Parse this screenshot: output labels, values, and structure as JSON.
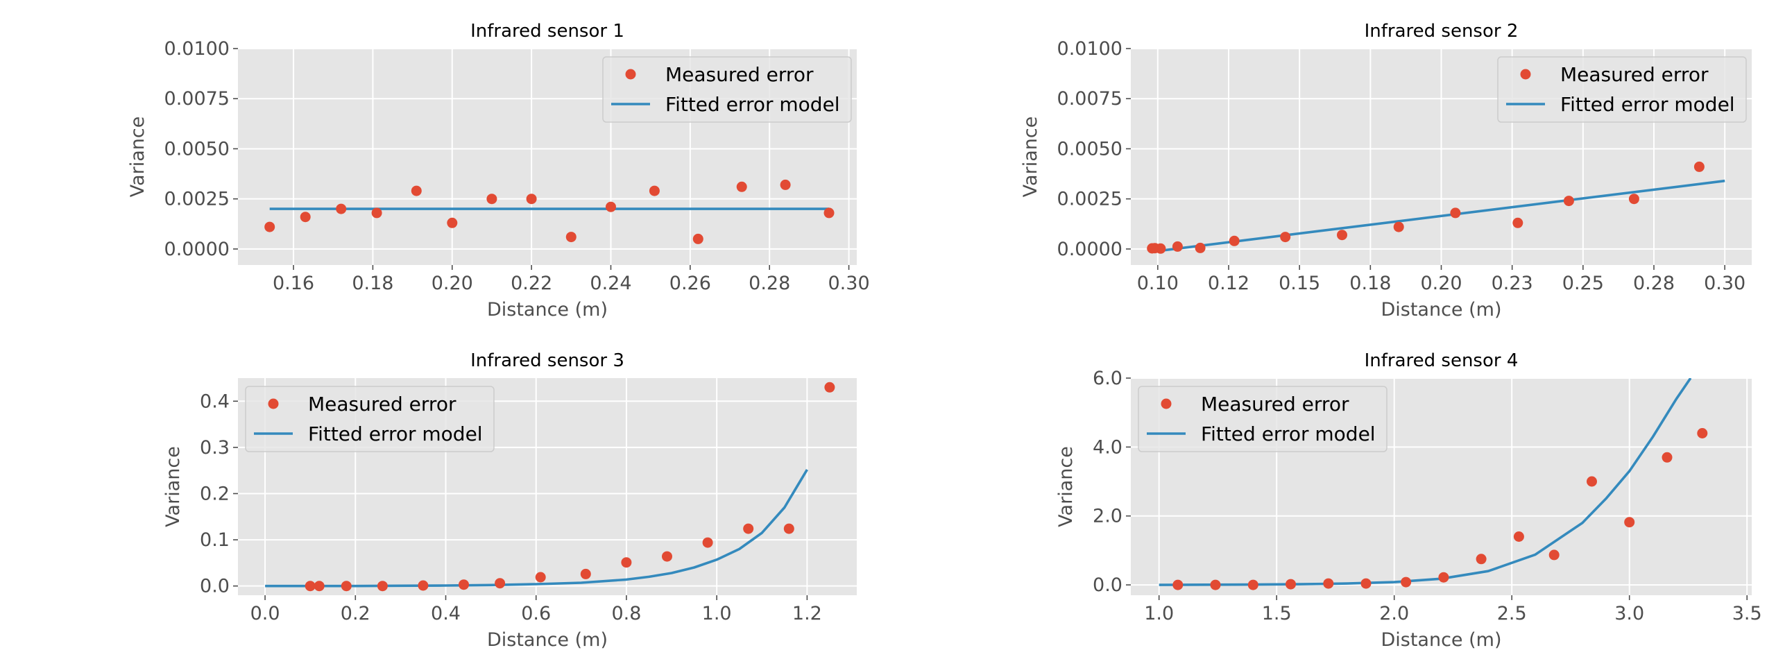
{
  "colors": {
    "plot_background": "#e5e5e5",
    "grid": "#ffffff",
    "measured": "#e24a33",
    "fitted": "#348abd",
    "tick_text": "#4d4d4d",
    "tick_mark": "#4d4d4d"
  },
  "legend": {
    "measured": "Measured error",
    "fitted": "Fitted error model"
  },
  "chart_data": [
    {
      "type": "scatter",
      "title": "Infrared sensor 1",
      "xlabel": "Distance (m)",
      "ylabel": "Variance",
      "xlim": [
        0.146,
        0.302
      ],
      "ylim": [
        -0.0008,
        0.01
      ],
      "xticks": [
        0.16,
        0.18,
        0.2,
        0.22,
        0.24,
        0.26,
        0.28,
        0.3
      ],
      "xtick_labels": [
        "0.16",
        "0.18",
        "0.20",
        "0.22",
        "0.24",
        "0.26",
        "0.28",
        "0.30"
      ],
      "yticks": [
        0.0,
        0.0025,
        0.005,
        0.0075,
        0.01
      ],
      "ytick_labels": [
        "0.0000",
        "0.0025",
        "0.0050",
        "0.0075",
        "0.0100"
      ],
      "grid": true,
      "legend_position": "upper right",
      "series": [
        {
          "name": "Measured error",
          "kind": "points",
          "x": [
            0.154,
            0.163,
            0.172,
            0.181,
            0.191,
            0.2,
            0.21,
            0.22,
            0.23,
            0.24,
            0.251,
            0.262,
            0.273,
            0.284,
            0.295
          ],
          "y": [
            0.0011,
            0.0016,
            0.002,
            0.0018,
            0.0029,
            0.0013,
            0.0025,
            0.0025,
            0.0006,
            0.0021,
            0.0029,
            0.0005,
            0.0031,
            0.0032,
            0.0018
          ]
        },
        {
          "name": "Fitted error model",
          "kind": "line",
          "x": [
            0.154,
            0.295
          ],
          "y": [
            0.002,
            0.002
          ]
        }
      ]
    },
    {
      "type": "scatter",
      "title": "Infrared sensor 2",
      "xlabel": "Distance (m)",
      "ylabel": "Variance",
      "xlim": [
        0.0905,
        0.3095
      ],
      "ylim": [
        -0.0008,
        0.01
      ],
      "xticks": [
        0.1,
        0.125,
        0.15,
        0.175,
        0.2,
        0.225,
        0.25,
        0.275,
        0.3
      ],
      "xtick_labels": [
        "0.10",
        "0.12",
        "0.15",
        "0.18",
        "0.20",
        "0.23",
        "0.25",
        "0.28",
        "0.30"
      ],
      "yticks": [
        0.0,
        0.0025,
        0.005,
        0.0075,
        0.01
      ],
      "ytick_labels": [
        "0.0000",
        "0.0025",
        "0.0050",
        "0.0075",
        "0.0100"
      ],
      "grid": true,
      "legend_position": "upper right",
      "series": [
        {
          "name": "Measured error",
          "kind": "points",
          "x": [
            0.098,
            0.099,
            0.101,
            0.107,
            0.115,
            0.127,
            0.145,
            0.165,
            0.185,
            0.205,
            0.227,
            0.245,
            0.268,
            0.291
          ],
          "y": [
            3e-05,
            4e-05,
            2e-05,
            0.00012,
            5e-05,
            0.0004,
            0.0006,
            0.0007,
            0.0011,
            0.0018,
            0.0013,
            0.0024,
            0.0025,
            0.0041
          ]
        },
        {
          "name": "Fitted error model",
          "kind": "line",
          "x": [
            0.1,
            0.3
          ],
          "y": [
            -0.0001,
            0.0034
          ]
        }
      ]
    },
    {
      "type": "scatter",
      "title": "Infrared sensor 3",
      "xlabel": "Distance (m)",
      "ylabel": "Variance",
      "xlim": [
        -0.06,
        1.31
      ],
      "ylim": [
        -0.02,
        0.45
      ],
      "xticks": [
        0.0,
        0.2,
        0.4,
        0.6,
        0.8,
        1.0,
        1.2
      ],
      "xtick_labels": [
        "0.0",
        "0.2",
        "0.4",
        "0.6",
        "0.8",
        "1.0",
        "1.2"
      ],
      "yticks": [
        0.0,
        0.1,
        0.2,
        0.3,
        0.4
      ],
      "ytick_labels": [
        "0.0",
        "0.1",
        "0.2",
        "0.3",
        "0.4"
      ],
      "grid": true,
      "legend_position": "upper left",
      "series": [
        {
          "name": "Measured error",
          "kind": "points",
          "x": [
            0.1,
            0.12,
            0.18,
            0.26,
            0.35,
            0.44,
            0.52,
            0.61,
            0.71,
            0.8,
            0.89,
            0.98,
            1.07,
            1.16,
            1.25
          ],
          "y": [
            0.0,
            0.0,
            0.0,
            0.0,
            0.001,
            0.003,
            0.006,
            0.019,
            0.026,
            0.051,
            0.064,
            0.094,
            0.124,
            0.124,
            0.43
          ]
        },
        {
          "name": "Fitted error model",
          "kind": "line",
          "x": [
            0.0,
            0.1,
            0.2,
            0.3,
            0.4,
            0.5,
            0.6,
            0.7,
            0.8,
            0.85,
            0.9,
            0.95,
            1.0,
            1.05,
            1.1,
            1.15,
            1.2
          ],
          "y": [
            0.0,
            0.0,
            0.0,
            0.0005,
            0.001,
            0.002,
            0.004,
            0.007,
            0.014,
            0.02,
            0.028,
            0.04,
            0.057,
            0.08,
            0.115,
            0.17,
            0.252
          ]
        }
      ]
    },
    {
      "type": "scatter",
      "title": "Infrared sensor 4",
      "xlabel": "Distance (m)",
      "ylabel": "Variance",
      "xlim": [
        0.88,
        3.52
      ],
      "ylim": [
        -0.3,
        6.0
      ],
      "xticks": [
        1.0,
        1.5,
        2.0,
        2.5,
        3.0,
        3.5
      ],
      "xtick_labels": [
        "1.0",
        "1.5",
        "2.0",
        "2.5",
        "3.0",
        "3.5"
      ],
      "yticks": [
        0.0,
        2.0,
        4.0,
        6.0
      ],
      "ytick_labels": [
        "0.0",
        "2.0",
        "4.0",
        "6.0"
      ],
      "grid": true,
      "legend_position": "upper left",
      "series": [
        {
          "name": "Measured error",
          "kind": "points",
          "x": [
            1.08,
            1.24,
            1.4,
            1.56,
            1.72,
            1.88,
            2.05,
            2.21,
            2.37,
            2.53,
            2.68,
            2.84,
            3.0,
            3.16,
            3.31
          ],
          "y": [
            0.0,
            0.0,
            0.0,
            0.02,
            0.04,
            0.04,
            0.08,
            0.22,
            0.75,
            1.4,
            0.87,
            3.0,
            1.82,
            3.7,
            4.4
          ]
        },
        {
          "name": "Fitted error model",
          "kind": "line",
          "x": [
            1.0,
            1.2,
            1.4,
            1.6,
            1.8,
            2.0,
            2.2,
            2.4,
            2.6,
            2.8,
            2.9,
            3.0,
            3.1,
            3.2,
            3.26
          ],
          "y": [
            0.0,
            0.005,
            0.01,
            0.02,
            0.04,
            0.08,
            0.18,
            0.4,
            0.88,
            1.8,
            2.5,
            3.3,
            4.3,
            5.4,
            6.0
          ]
        }
      ]
    }
  ]
}
